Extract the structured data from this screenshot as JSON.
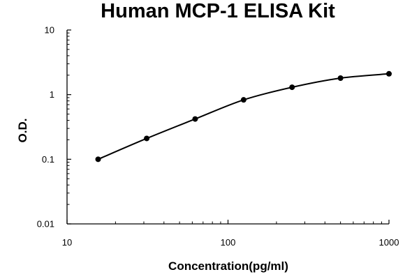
{
  "chart_data": {
    "type": "line",
    "title": "Human MCP-1 ELISA Kit",
    "xlabel": "Concentration(pg/ml)",
    "ylabel": "O.D.",
    "xscale": "log",
    "yscale": "log",
    "xlim": [
      10,
      1000
    ],
    "ylim": [
      0.01,
      10
    ],
    "x_ticks": [
      "10",
      "100",
      "1000"
    ],
    "y_ticks": [
      "0.01",
      "0.1",
      "1",
      "10"
    ],
    "grid": false,
    "legend": "none",
    "line_color": "#000000",
    "marker_color": "#000000",
    "series": [
      {
        "x": [
          15.6,
          31.25,
          62.5,
          125,
          250,
          500,
          1000
        ],
        "y": [
          0.1,
          0.21,
          0.42,
          0.83,
          1.3,
          1.8,
          2.1
        ]
      }
    ]
  }
}
